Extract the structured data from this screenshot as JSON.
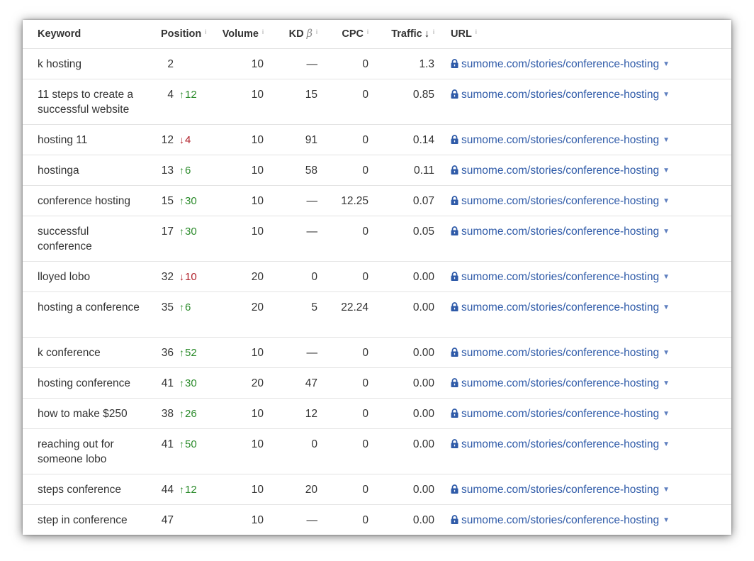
{
  "table": {
    "headers": {
      "keyword": "Keyword",
      "position": "Position",
      "volume": "Volume",
      "kd": "KD",
      "kd_beta": "β",
      "cpc": "CPC",
      "traffic": "Traffic",
      "traffic_sort_arrow": "↓",
      "url": "URL",
      "info_glyph": "i"
    },
    "icons": {
      "lock": "lock-icon",
      "caret": "caret-down-icon",
      "up": "arrow-up-icon",
      "down": "arrow-down-icon"
    },
    "colors": {
      "link": "#2e5aa8",
      "up": "#2a8a2a",
      "down": "#b0202a"
    },
    "rows": [
      {
        "keyword": "k hosting",
        "position": "2",
        "change": "",
        "direction": "",
        "volume": "10",
        "kd": "—",
        "cpc": "0",
        "traffic": "1.3",
        "url": "sumome.com/stories/conference-hosting"
      },
      {
        "keyword": "11 steps to create a successful website",
        "position": "4",
        "change": "12",
        "direction": "up",
        "volume": "10",
        "kd": "15",
        "cpc": "0",
        "traffic": "0.85",
        "url": "sumome.com/stories/conference-hosting"
      },
      {
        "keyword": "hosting 11",
        "position": "12",
        "change": "4",
        "direction": "down",
        "volume": "10",
        "kd": "91",
        "cpc": "0",
        "traffic": "0.14",
        "url": "sumome.com/stories/conference-hosting"
      },
      {
        "keyword": "hostinga",
        "position": "13",
        "change": "6",
        "direction": "up",
        "volume": "10",
        "kd": "58",
        "cpc": "0",
        "traffic": "0.11",
        "url": "sumome.com/stories/conference-hosting"
      },
      {
        "keyword": "conference hosting",
        "position": "15",
        "change": "30",
        "direction": "up",
        "volume": "10",
        "kd": "—",
        "cpc": "12.25",
        "traffic": "0.07",
        "url": "sumome.com/stories/conference-hosting"
      },
      {
        "keyword": "successful conference",
        "position": "17",
        "change": "30",
        "direction": "up",
        "volume": "10",
        "kd": "—",
        "cpc": "0",
        "traffic": "0.05",
        "url": "sumome.com/stories/conference-hosting"
      },
      {
        "keyword": "lloyed lobo",
        "position": "32",
        "change": "10",
        "direction": "down",
        "volume": "20",
        "kd": "0",
        "cpc": "0",
        "traffic": "0.00",
        "url": "sumome.com/stories/conference-hosting"
      },
      {
        "keyword": "hosting a conference",
        "position": "35",
        "change": "6",
        "direction": "up",
        "volume": "20",
        "kd": "5",
        "cpc": "22.24",
        "traffic": "0.00",
        "url": "sumome.com/stories/conference-hosting"
      },
      {
        "keyword": "k conference",
        "position": "36",
        "change": "52",
        "direction": "up",
        "volume": "10",
        "kd": "—",
        "cpc": "0",
        "traffic": "0.00",
        "url": "sumome.com/stories/conference-hosting"
      },
      {
        "keyword": "hosting conference",
        "position": "41",
        "change": "30",
        "direction": "up",
        "volume": "20",
        "kd": "47",
        "cpc": "0",
        "traffic": "0.00",
        "url": "sumome.com/stories/conference-hosting"
      },
      {
        "keyword": "how to make $250",
        "position": "38",
        "change": "26",
        "direction": "up",
        "volume": "10",
        "kd": "12",
        "cpc": "0",
        "traffic": "0.00",
        "url": "sumome.com/stories/conference-hosting"
      },
      {
        "keyword": "reaching out for someone lobo",
        "position": "41",
        "change": "50",
        "direction": "up",
        "volume": "10",
        "kd": "0",
        "cpc": "0",
        "traffic": "0.00",
        "url": "sumome.com/stories/conference-hosting"
      },
      {
        "keyword": "steps conference",
        "position": "44",
        "change": "12",
        "direction": "up",
        "volume": "10",
        "kd": "20",
        "cpc": "0",
        "traffic": "0.00",
        "url": "sumome.com/stories/conference-hosting"
      },
      {
        "keyword": "step in conference",
        "position": "47",
        "change": "",
        "direction": "",
        "volume": "10",
        "kd": "—",
        "cpc": "0",
        "traffic": "0.00",
        "url": "sumome.com/stories/conference-hosting"
      }
    ]
  }
}
